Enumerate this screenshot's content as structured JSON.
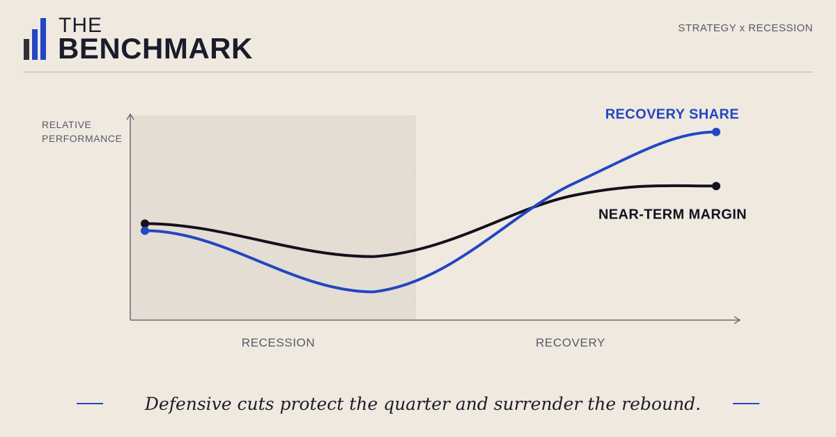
{
  "brand": {
    "line1": "THE",
    "line2": "BENCHMARK",
    "colors": {
      "dark": "#2e3038",
      "accent": "#2346c2"
    }
  },
  "kicker": "STRATEGY x RECESSION",
  "chart_data": {
    "type": "line",
    "title": "",
    "ylabel": [
      "RELATIVE",
      "PERFORMANCE"
    ],
    "xlabel": "",
    "phases": [
      {
        "label": "RECESSION",
        "shaded": true
      },
      {
        "label": "RECOVERY",
        "shaded": false
      }
    ],
    "grid": false,
    "series": [
      {
        "name": "RECOVERY SHARE",
        "color": "#2346c2",
        "points": [
          [
            0,
            38
          ],
          [
            0.8,
            12
          ],
          [
            1.5,
            58
          ],
          [
            2.0,
            80
          ]
        ]
      },
      {
        "name": "NEAR-TERM MARGIN",
        "color": "#12121e",
        "points": [
          [
            0,
            41
          ],
          [
            0.8,
            27
          ],
          [
            1.5,
            53
          ],
          [
            2.0,
            57
          ]
        ]
      }
    ],
    "xlim": [
      0,
      2
    ],
    "ylim": [
      0,
      100
    ]
  },
  "footer": {
    "caption": "Defensive cuts protect the quarter and surrender the rebound.",
    "accent": "#2346c2"
  }
}
